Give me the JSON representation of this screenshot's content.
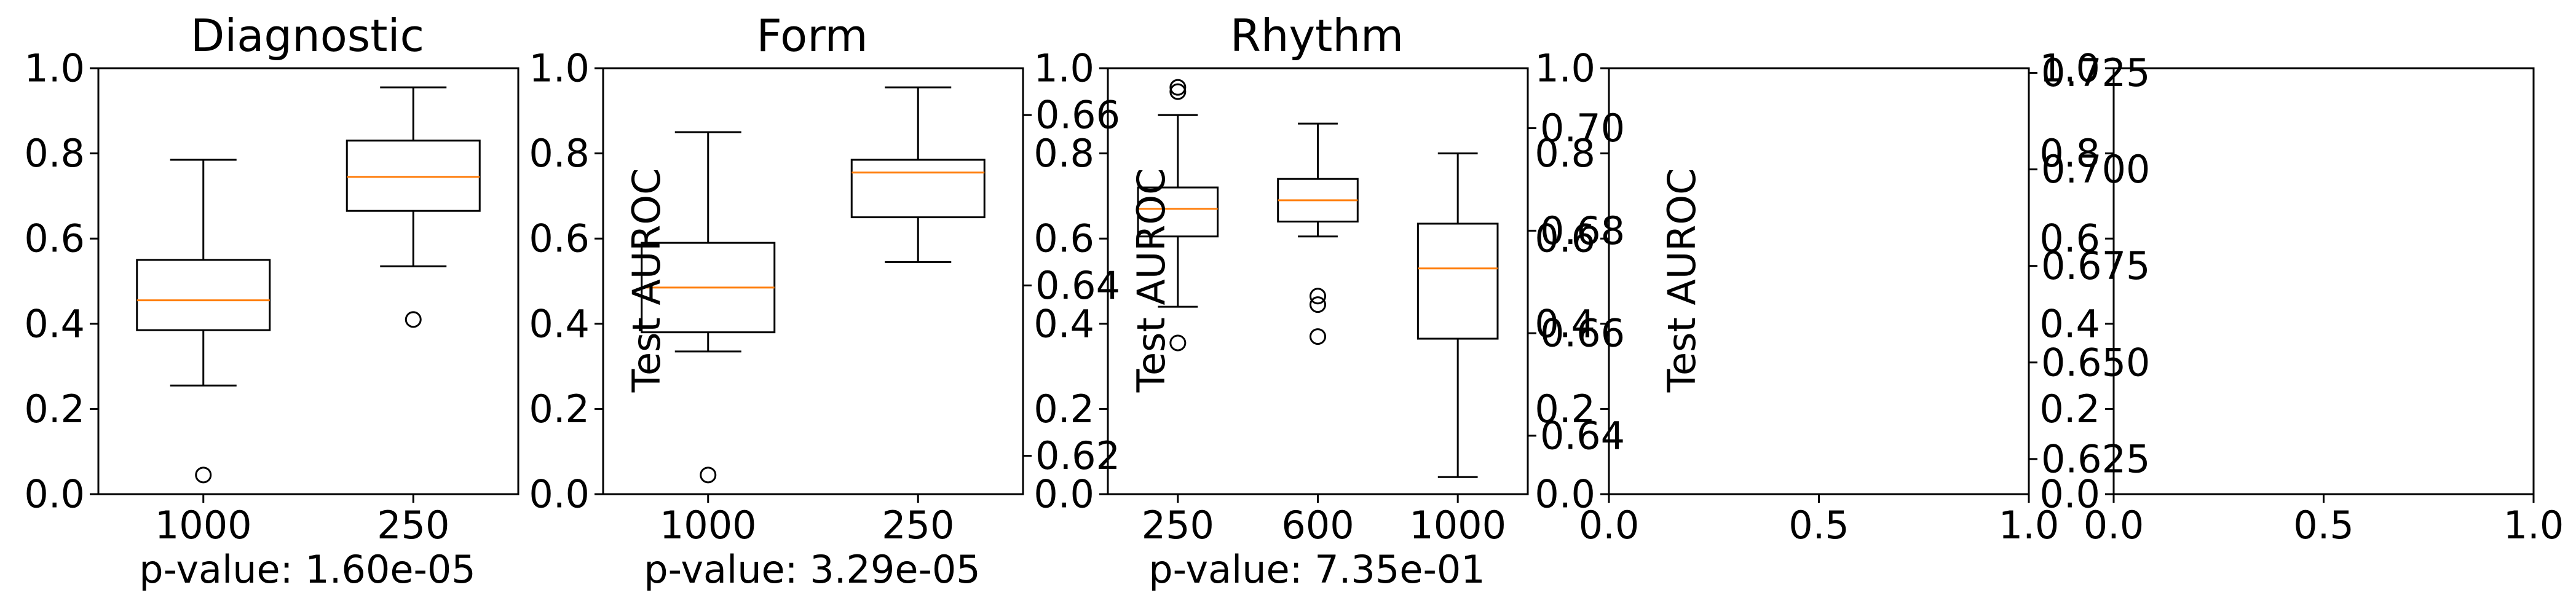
{
  "figure": {
    "panels": [
      {
        "title": "Diagnostic",
        "ylabel": "",
        "left_ticks": [
          "0.0",
          "0.2",
          "0.4",
          "0.6",
          "0.8",
          "1.0"
        ],
        "x_ticks": [
          "1000",
          "250"
        ],
        "pvalue": "p-value: 1.60e-05"
      },
      {
        "title": "Form",
        "ylabel": "Test AUROC",
        "left_ticks": [
          "0.0",
          "0.2",
          "0.4",
          "0.6",
          "0.8",
          "1.0"
        ],
        "right_ticks": [
          "0.62",
          "0.64",
          "0.66"
        ],
        "x_ticks": [
          "1000",
          "250"
        ],
        "pvalue": "p-value: 3.29e-05"
      },
      {
        "title": "Rhythm",
        "ylabel": "Test AUROC",
        "left_ticks": [
          "0.0",
          "0.2",
          "0.4",
          "0.6",
          "0.8",
          "1.0"
        ],
        "right_ticks": [
          "0.64",
          "0.66",
          "0.68",
          "0.70"
        ],
        "x_ticks": [
          "250",
          "600",
          "1000"
        ],
        "pvalue": "p-value: 7.35e-01"
      },
      {
        "title": "",
        "ylabel": "Test AUROC",
        "left_ticks": [
          "0.0",
          "0.2",
          "0.4",
          "0.6",
          "0.8",
          "1.0"
        ],
        "right_ticks": [
          "0.625",
          "0.650",
          "0.675",
          "0.700",
          "0.725"
        ],
        "x_ticks": [
          "0.0",
          "0.5",
          "1.0"
        ],
        "pvalue": ""
      },
      {
        "title": "",
        "ylabel": "",
        "left_ticks": [
          "0.0",
          "0.2",
          "0.4",
          "0.6",
          "0.8",
          "1.0"
        ],
        "x_ticks": [
          "0.0",
          "0.5",
          "1.0"
        ],
        "pvalue": ""
      }
    ]
  },
  "chart_data": [
    {
      "type": "boxplot",
      "title": "Diagnostic",
      "xlabel": "p-value: 1.60e-05",
      "ylabel": "",
      "ylim": [
        0,
        1
      ],
      "categories": [
        "1000",
        "250"
      ],
      "boxes": [
        {
          "category": "1000",
          "whislo": 0.255,
          "q1": 0.385,
          "med": 0.455,
          "q3": 0.55,
          "whishi": 0.785,
          "fliers": [
            0.045
          ]
        },
        {
          "category": "250",
          "whislo": 0.535,
          "q1": 0.665,
          "med": 0.745,
          "q3": 0.83,
          "whishi": 0.955,
          "fliers": [
            0.41
          ]
        }
      ]
    },
    {
      "type": "boxplot",
      "title": "Form",
      "xlabel": "p-value: 3.29e-05",
      "ylabel": "Test AUROC",
      "ylim": [
        0,
        1
      ],
      "categories": [
        "1000",
        "250"
      ],
      "boxes": [
        {
          "category": "1000",
          "whislo": 0.335,
          "q1": 0.38,
          "med": 0.485,
          "q3": 0.59,
          "whishi": 0.85,
          "fliers": [
            0.045
          ]
        },
        {
          "category": "250",
          "whislo": 0.545,
          "q1": 0.65,
          "med": 0.755,
          "q3": 0.785,
          "whishi": 0.955,
          "fliers": []
        }
      ],
      "secondary_axis": {
        "ylim": [
          0.6155,
          0.6655
        ],
        "ticks": [
          0.62,
          0.64,
          0.66
        ]
      }
    },
    {
      "type": "boxplot",
      "title": "Rhythm",
      "xlabel": "p-value: 7.35e-01",
      "ylabel": "Test AUROC",
      "ylim": [
        0,
        1
      ],
      "categories": [
        "250",
        "600",
        "1000"
      ],
      "boxes": [
        {
          "category": "250",
          "whislo": 0.44,
          "q1": 0.605,
          "med": 0.67,
          "q3": 0.72,
          "whishi": 0.89,
          "fliers": [
            0.355,
            0.945,
            0.955
          ]
        },
        {
          "category": "600",
          "whislo": 0.605,
          "q1": 0.64,
          "med": 0.69,
          "q3": 0.74,
          "whishi": 0.87,
          "fliers": [
            0.37,
            0.445,
            0.465
          ]
        },
        {
          "category": "1000",
          "whislo": 0.04,
          "q1": 0.365,
          "med": 0.53,
          "q3": 0.635,
          "whishi": 0.8,
          "fliers": []
        }
      ],
      "secondary_axis": {
        "ylim": [
          0.6286,
          0.7117
        ],
        "ticks": [
          0.64,
          0.66,
          0.68,
          0.7
        ]
      }
    },
    {
      "type": "boxplot",
      "title": "",
      "xlabel": "",
      "ylabel": "Test AUROC",
      "xlim": [
        0,
        1
      ],
      "ylim": [
        0,
        1
      ],
      "boxes": [],
      "secondary_axis": {
        "ylim": [
          0.6159,
          0.7262
        ],
        "ticks": [
          0.625,
          0.65,
          0.675,
          0.7,
          0.725
        ]
      }
    },
    {
      "type": "boxplot",
      "title": "",
      "xlabel": "",
      "ylabel": "",
      "xlim": [
        0,
        1
      ],
      "ylim": [
        0,
        1
      ],
      "boxes": []
    }
  ]
}
